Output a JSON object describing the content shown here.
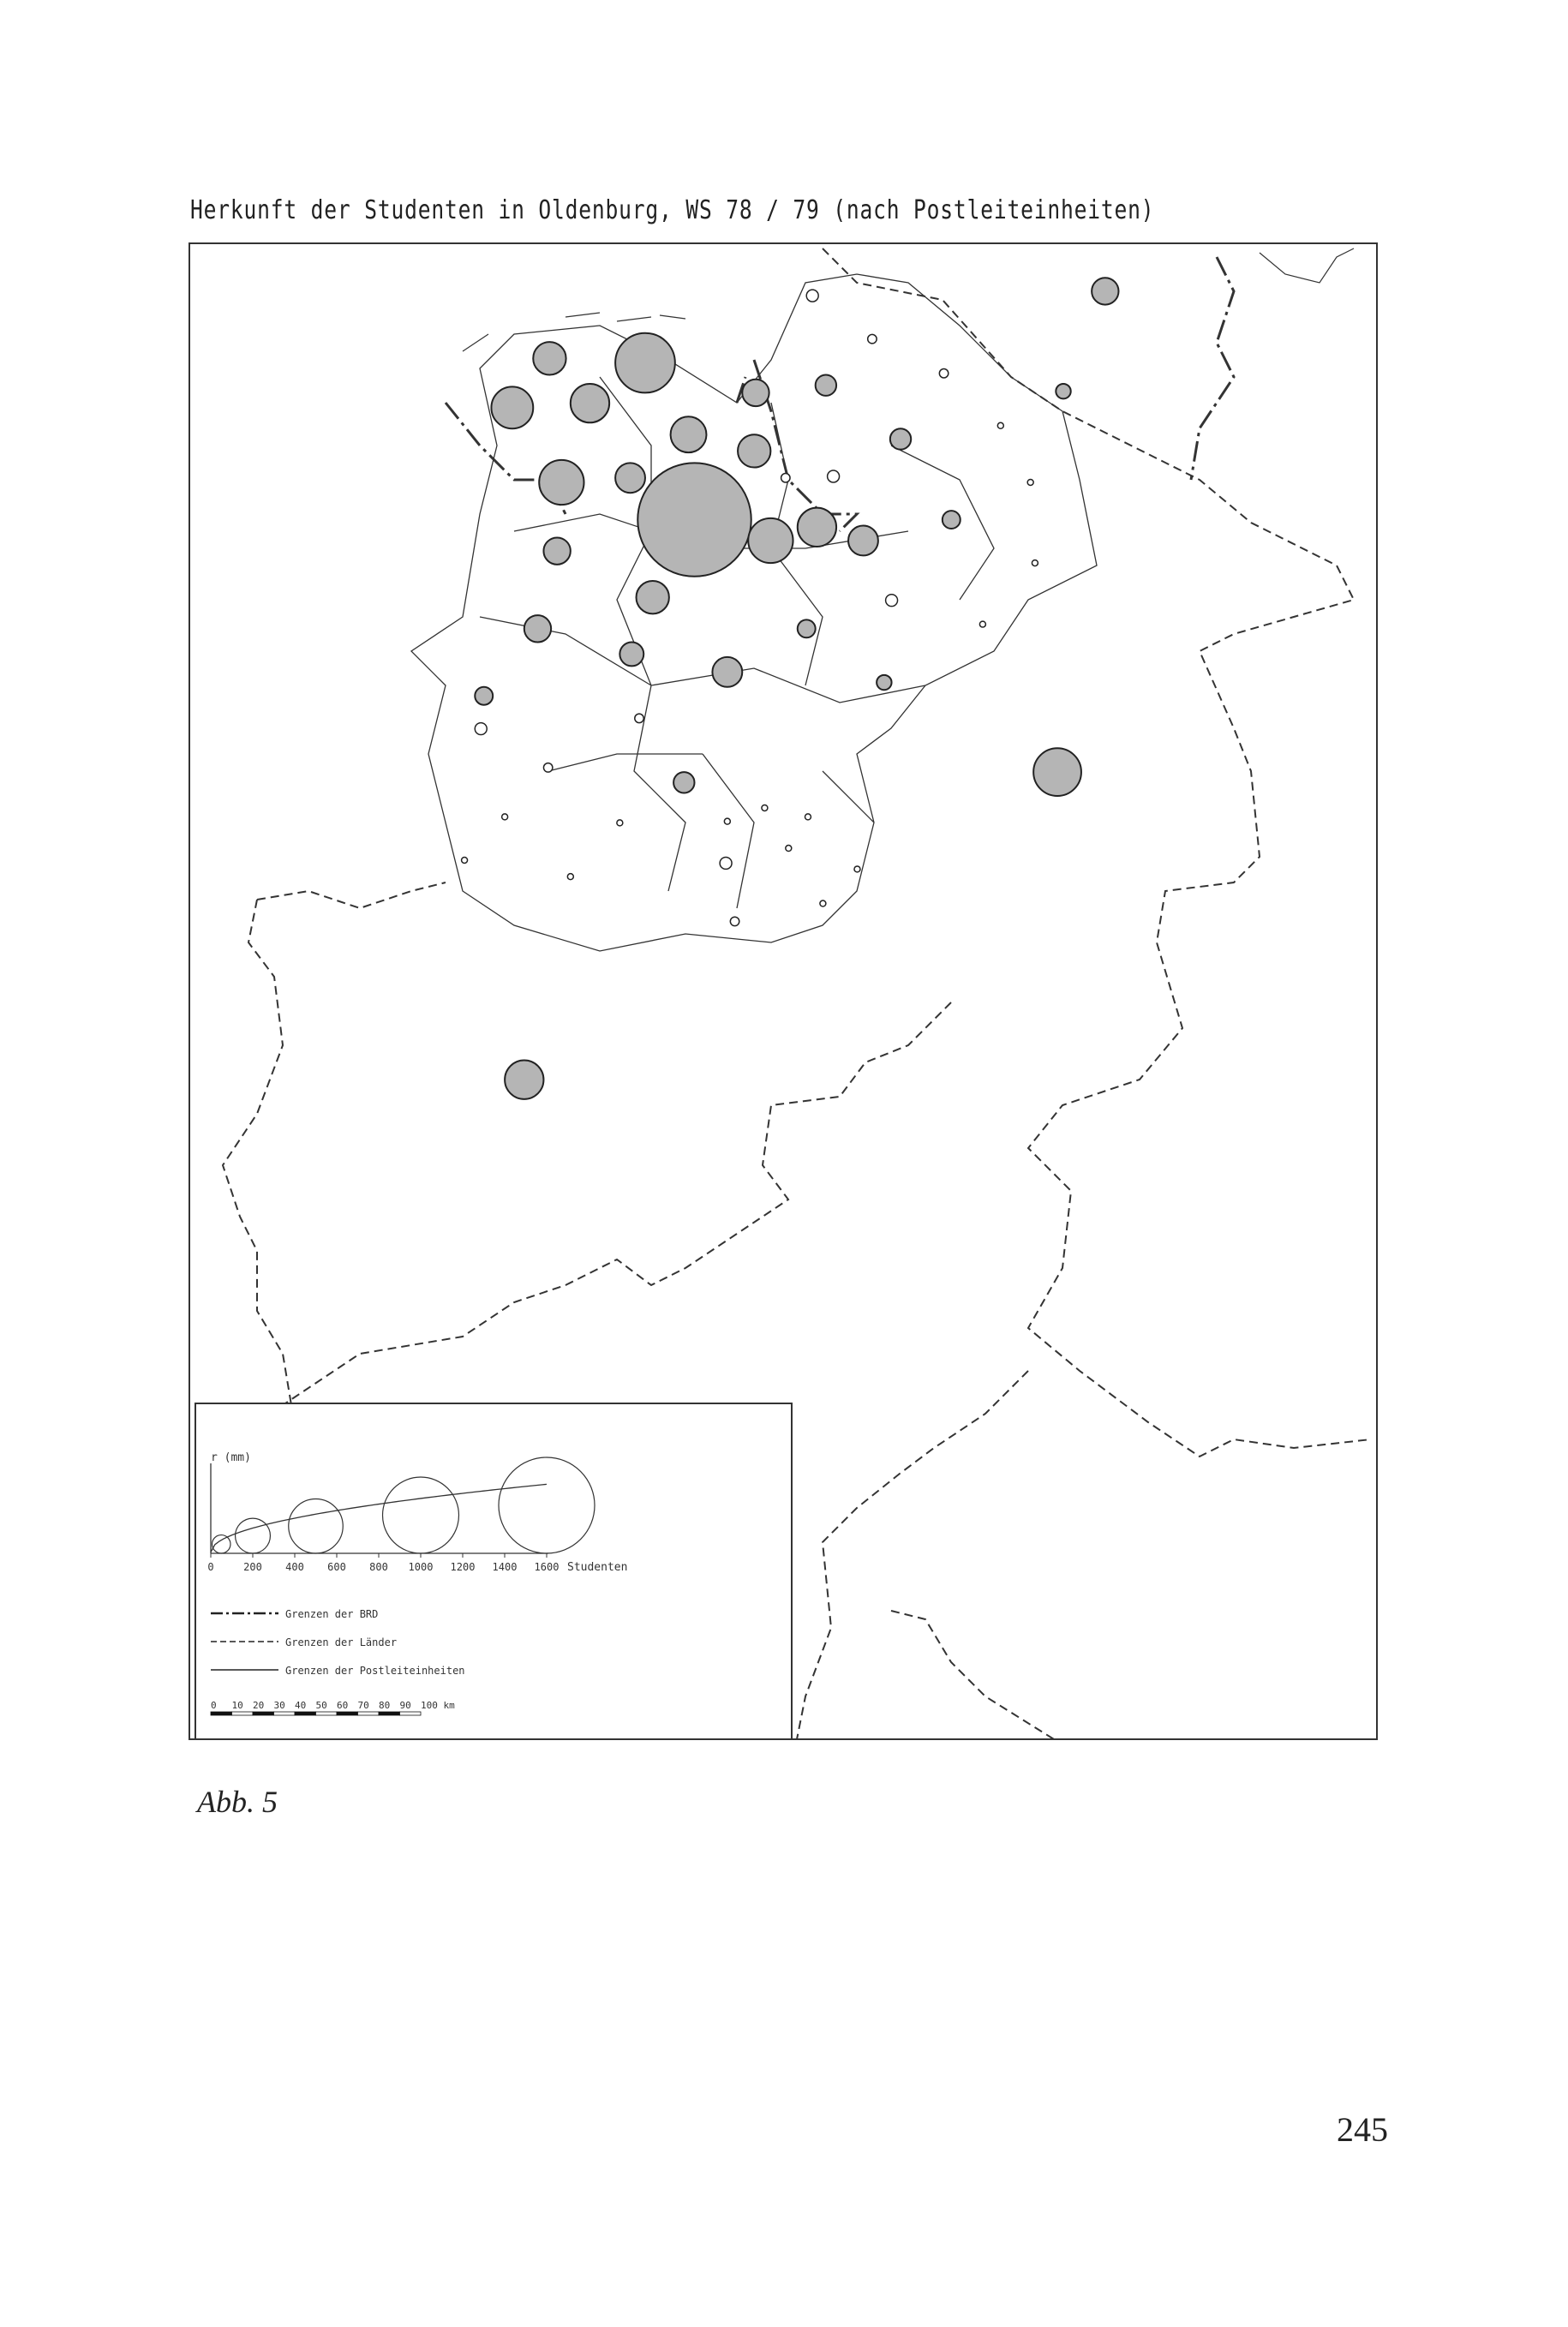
{
  "title": "Herkunft der Studenten in Oldenburg, WS 78 / 79 (nach Postleiteinheiten)",
  "caption": "Abb. 5",
  "page_number": "245",
  "legend": {
    "y_axis_label": "r (mm)",
    "x_axis_unit": "Studenten",
    "x_ticks": [
      "0",
      "200",
      "400",
      "600",
      "800",
      "1000",
      "1200",
      "1400",
      "1600"
    ],
    "reference_circles_students": [
      50,
      200,
      500,
      1000,
      1600
    ],
    "line_types": [
      {
        "style": "dash-dot",
        "label": "Grenzen der BRD"
      },
      {
        "style": "dashed",
        "label": "Grenzen der Länder"
      },
      {
        "style": "solid",
        "label": "Grenzen der Postleiteinheiten"
      }
    ],
    "scale_bar_ticks": [
      "0",
      "10",
      "20",
      "30",
      "40",
      "50",
      "60",
      "70",
      "80",
      "90",
      "100 km"
    ]
  },
  "colors": {
    "circle_fill": "#b5b5b5",
    "line": "#333333"
  }
}
